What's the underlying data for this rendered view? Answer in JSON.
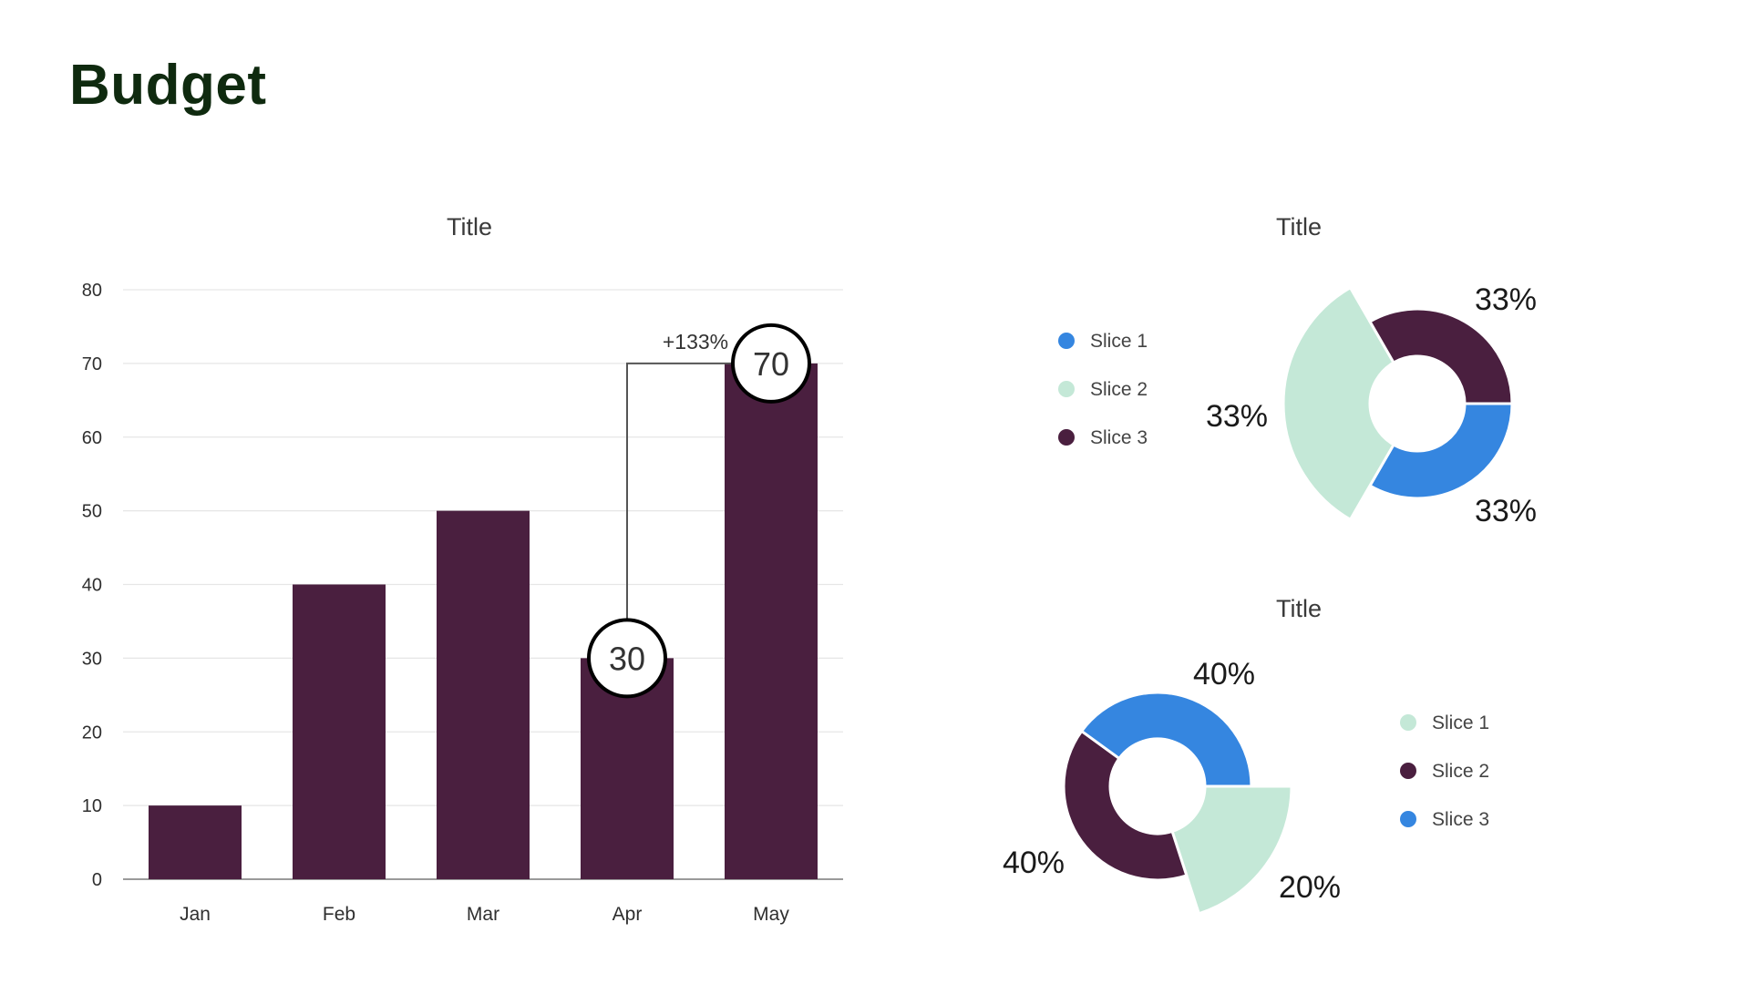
{
  "page": {
    "title": "Budget"
  },
  "chart_data": [
    {
      "type": "bar",
      "title": "Title",
      "xlabel": "",
      "ylabel": "",
      "categories": [
        "Jan",
        "Feb",
        "Mar",
        "Apr",
        "May"
      ],
      "series": [
        {
          "values": [
            10,
            40,
            50,
            30,
            70
          ]
        }
      ],
      "ylim": [
        0,
        80
      ],
      "yticks": [
        "0",
        "10",
        "20",
        "30",
        "40",
        "50",
        "60",
        "70",
        "80"
      ],
      "grid": true,
      "bar_color": "#4a1f3f",
      "annotations": {
        "from": {
          "category": "Apr",
          "label": "30"
        },
        "to": {
          "category": "May",
          "label": "70"
        },
        "change_label": "+133%"
      }
    },
    {
      "type": "pie",
      "title": "Title",
      "legend_position": "left",
      "slices": [
        {
          "label": "Slice 1",
          "value": 33,
          "value_label": "33%",
          "color": "#3586e0"
        },
        {
          "label": "Slice 2",
          "value": 33,
          "value_label": "33%",
          "color": "#c4e8d7"
        },
        {
          "label": "Slice 3",
          "value": 33,
          "value_label": "33%",
          "color": "#4a1f3f"
        }
      ]
    },
    {
      "type": "pie",
      "title": "Title",
      "legend_position": "right",
      "slices": [
        {
          "label": "Slice 1",
          "value": 20,
          "value_label": "20%",
          "color": "#c4e8d7"
        },
        {
          "label": "Slice 2",
          "value": 40,
          "value_label": "40%",
          "color": "#4a1f3f"
        },
        {
          "label": "Slice 3",
          "value": 40,
          "value_label": "40%",
          "color": "#3586e0"
        }
      ]
    }
  ]
}
